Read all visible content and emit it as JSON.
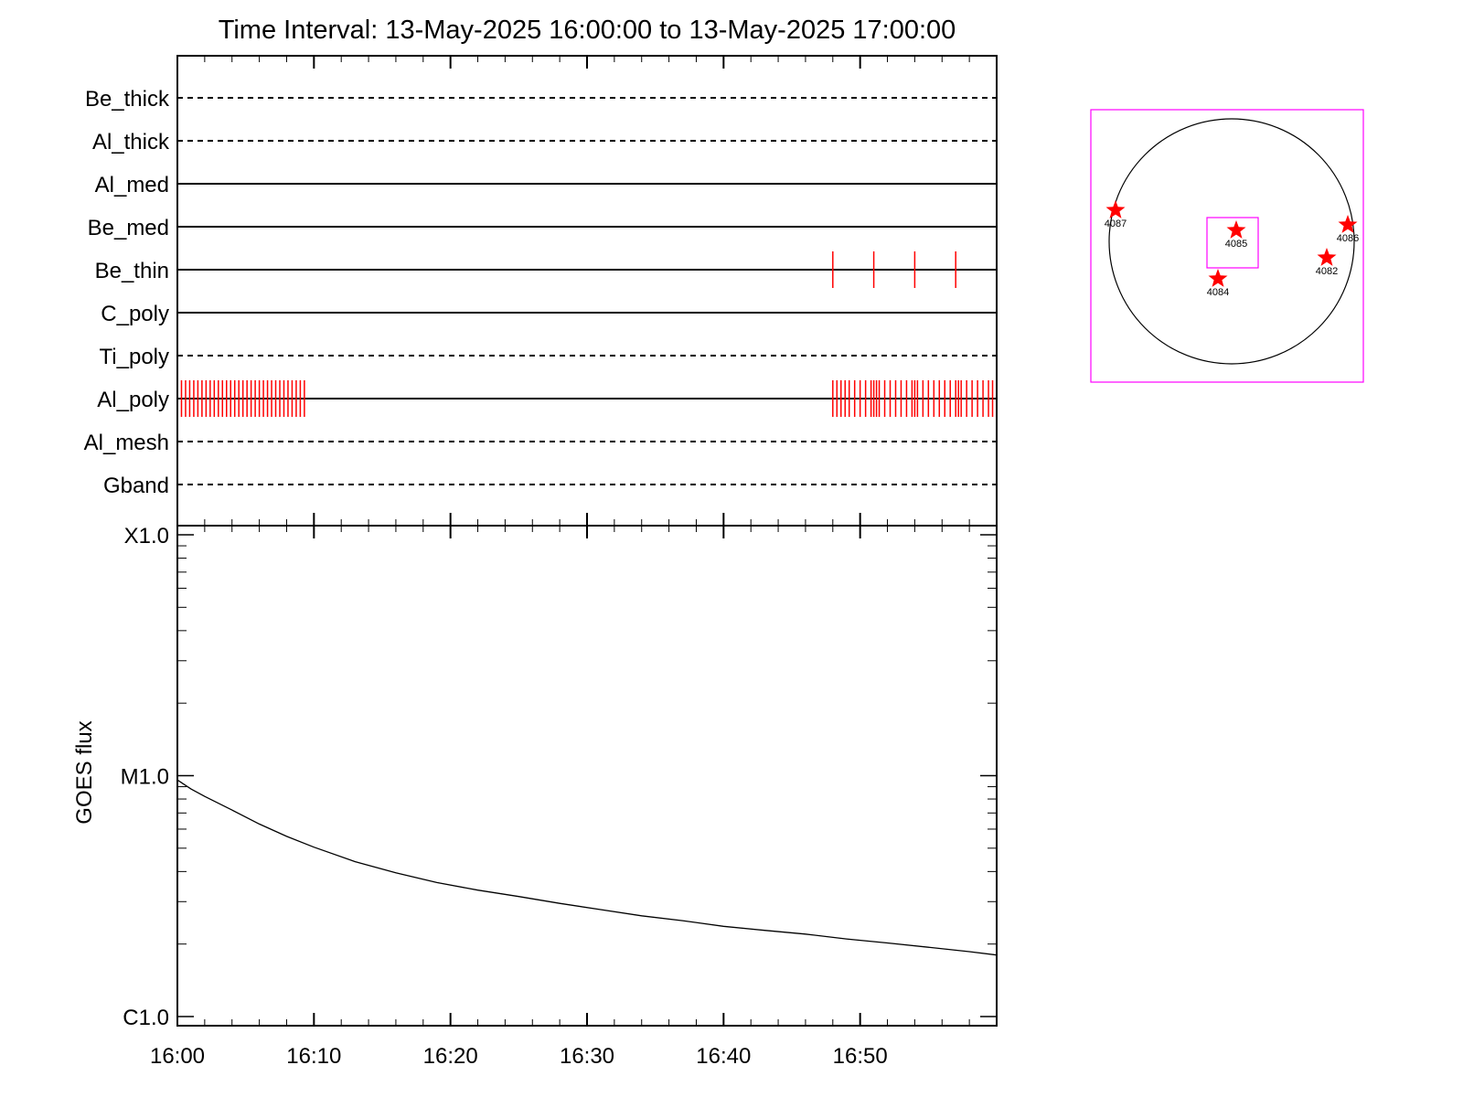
{
  "chart_data": [
    {
      "type": "timeline",
      "title": "Time Interval: 13-May-2025 16:00:00 to 13-May-2025 17:00:00",
      "x_range": [
        "16:00",
        "17:00"
      ],
      "channels": [
        {
          "name": "Be_thick",
          "line": "dashed",
          "events_min": []
        },
        {
          "name": "Al_thick",
          "line": "dashed",
          "events_min": []
        },
        {
          "name": "Al_med",
          "line": "solid",
          "events_min": []
        },
        {
          "name": "Be_med",
          "line": "solid",
          "events_min": []
        },
        {
          "name": "Be_thin",
          "line": "solid",
          "events_min": [
            48.0,
            51.0,
            54.0,
            57.0
          ]
        },
        {
          "name": "C_poly",
          "line": "solid",
          "events_min": []
        },
        {
          "name": "Ti_poly",
          "line": "dashed",
          "events_min": []
        },
        {
          "name": "Al_poly",
          "line": "solid",
          "events_min": [
            0.3,
            0.6,
            0.9,
            1.2,
            1.5,
            1.8,
            2.1,
            2.4,
            2.7,
            3.0,
            3.3,
            3.6,
            3.9,
            4.2,
            4.5,
            4.8,
            5.1,
            5.4,
            5.7,
            6.0,
            6.3,
            6.6,
            6.9,
            7.2,
            7.5,
            7.8,
            8.1,
            8.4,
            8.7,
            9.0,
            9.3,
            48.0,
            48.3,
            48.6,
            48.9,
            49.2,
            49.6,
            50.0,
            50.4,
            50.8,
            51.0,
            51.2,
            51.4,
            51.8,
            52.2,
            52.6,
            53.0,
            53.4,
            53.8,
            54.0,
            54.2,
            54.6,
            55.0,
            55.4,
            55.8,
            56.2,
            56.6,
            57.0,
            57.2,
            57.4,
            57.8,
            58.2,
            58.6,
            59.0,
            59.4,
            59.7
          ]
        },
        {
          "name": "Al_mesh",
          "line": "dashed",
          "events_min": []
        },
        {
          "name": "Gband",
          "line": "dashed",
          "events_min": []
        }
      ],
      "event_color": "#ff0000"
    },
    {
      "type": "line",
      "ylabel": "GOES flux",
      "y_scale": "log",
      "y_ticks": [
        {
          "label": "X1.0",
          "value": 0.0001
        },
        {
          "label": "M1.0",
          "value": 1e-05
        },
        {
          "label": "C1.0",
          "value": 1e-06
        }
      ],
      "x_tick_labels": [
        "16:00",
        "16:10",
        "16:20",
        "16:30",
        "16:40",
        "16:50"
      ],
      "x_ticks_min": [
        0,
        10,
        20,
        30,
        40,
        50
      ],
      "x_range_min": [
        0,
        60
      ],
      "series": [
        {
          "x_min": [
            0,
            1,
            2,
            4,
            6,
            8,
            10,
            13,
            16,
            19,
            22,
            25,
            28,
            31,
            34,
            37,
            40,
            43,
            46,
            49,
            52,
            55,
            58,
            60
          ],
          "y": [
            9.6e-06,
            8.8e-06,
            8.2e-06,
            7.2e-06,
            6.3e-06,
            5.6e-06,
            5.05e-06,
            4.4e-06,
            3.95e-06,
            3.6e-06,
            3.35e-06,
            3.15e-06,
            2.95e-06,
            2.78e-06,
            2.62e-06,
            2.5e-06,
            2.37e-06,
            2.28e-06,
            2.2e-06,
            2.1e-06,
            2.02e-06,
            1.94e-06,
            1.86e-06,
            1.8e-06
          ]
        }
      ]
    },
    {
      "type": "map",
      "frame_color": "#ff00ff",
      "marker_color": "#ff0000",
      "active_regions": [
        {
          "label": "4087"
        },
        {
          "label": "4085"
        },
        {
          "label": "4086"
        },
        {
          "label": "4082"
        },
        {
          "label": "4084"
        }
      ]
    }
  ]
}
